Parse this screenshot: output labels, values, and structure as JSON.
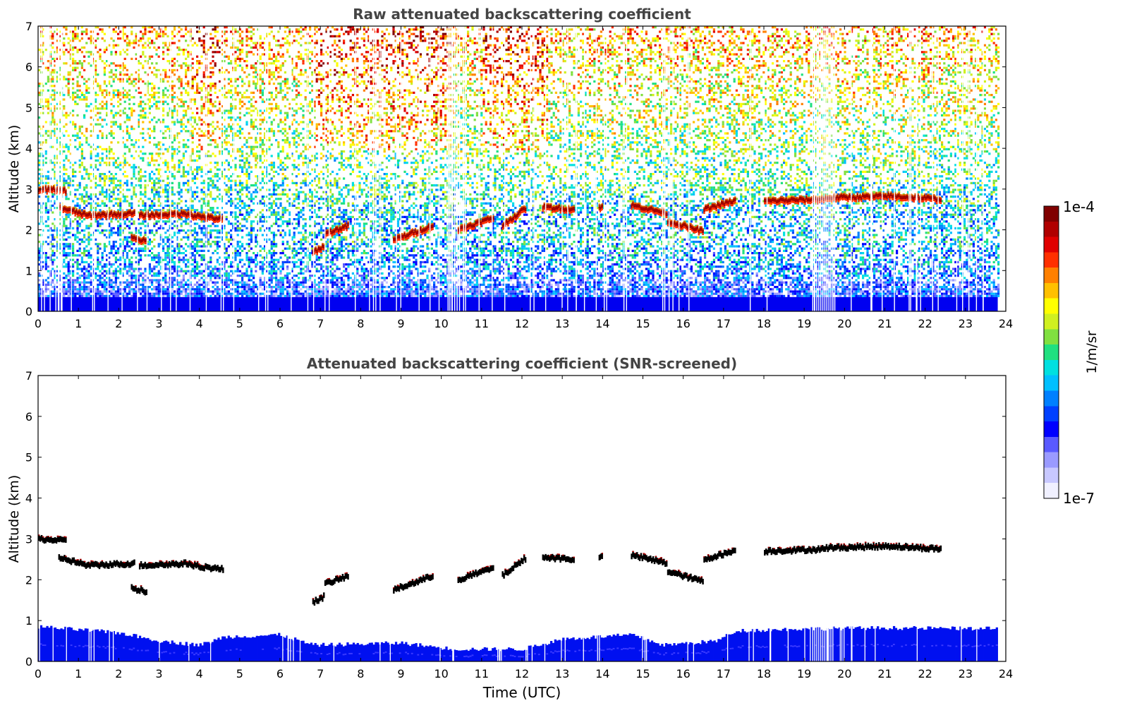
{
  "colorbar": {
    "max_label": "1e-4",
    "min_label": "1e-7",
    "unit_label": "1/m/sr",
    "colors": [
      "#f0f0ff",
      "#c8c8ff",
      "#9a9aff",
      "#5a5aff",
      "#0000ff",
      "#0040ff",
      "#0080ff",
      "#00c0ff",
      "#00e0e0",
      "#20e080",
      "#80e040",
      "#d0f020",
      "#ffff00",
      "#ffc000",
      "#ff8000",
      "#ff3000",
      "#e00000",
      "#b00000",
      "#800000"
    ]
  },
  "chart_data": [
    {
      "type": "heatmap",
      "title": "Raw attenuated backscattering coefficient",
      "xlabel": "",
      "ylabel": "Altitude (km)",
      "xlim": [
        0,
        24
      ],
      "ylim": [
        0,
        7
      ],
      "xticks": [
        "0",
        "1",
        "2",
        "3",
        "4",
        "5",
        "6",
        "7",
        "8",
        "9",
        "10",
        "11",
        "12",
        "13",
        "14",
        "15",
        "16",
        "17",
        "18",
        "19",
        "20",
        "21",
        "22",
        "23",
        "24"
      ],
      "yticks": [
        "0",
        "1",
        "2",
        "3",
        "4",
        "5",
        "6",
        "7"
      ],
      "colorscale": "log",
      "clim": [
        1e-07,
        0.0001
      ],
      "data_end_time": 23.8,
      "boundary_layer_top_km": 0.8,
      "cloud_layer_segments": [
        {
          "t0": 0.0,
          "t1": 0.7,
          "z0": 3.0,
          "z1": 2.95
        },
        {
          "t0": 0.5,
          "t1": 1.2,
          "z0": 2.55,
          "z1": 2.35
        },
        {
          "t0": 1.2,
          "t1": 2.4,
          "z0": 2.35,
          "z1": 2.4
        },
        {
          "t0": 2.5,
          "t1": 3.8,
          "z0": 2.35,
          "z1": 2.4
        },
        {
          "t0": 3.8,
          "t1": 4.6,
          "z0": 2.35,
          "z1": 2.25
        },
        {
          "t0": 2.3,
          "t1": 2.7,
          "z0": 1.8,
          "z1": 1.7
        },
        {
          "t0": 6.8,
          "t1": 7.1,
          "z0": 1.45,
          "z1": 1.6
        },
        {
          "t0": 7.1,
          "t1": 7.7,
          "z0": 1.9,
          "z1": 2.1
        },
        {
          "t0": 8.8,
          "t1": 9.8,
          "z0": 1.75,
          "z1": 2.1
        },
        {
          "t0": 10.4,
          "t1": 11.3,
          "z0": 2.0,
          "z1": 2.3
        },
        {
          "t0": 11.5,
          "t1": 12.1,
          "z0": 2.1,
          "z1": 2.55
        },
        {
          "t0": 12.5,
          "t1": 13.3,
          "z0": 2.55,
          "z1": 2.5
        },
        {
          "t0": 13.9,
          "t1": 14.0,
          "z0": 2.55,
          "z1": 2.55
        },
        {
          "t0": 14.7,
          "t1": 15.6,
          "z0": 2.6,
          "z1": 2.4
        },
        {
          "t0": 15.6,
          "t1": 16.5,
          "z0": 2.2,
          "z1": 1.95
        },
        {
          "t0": 16.5,
          "t1": 17.3,
          "z0": 2.5,
          "z1": 2.72
        },
        {
          "t0": 18.0,
          "t1": 19.5,
          "z0": 2.7,
          "z1": 2.75
        },
        {
          "t0": 19.5,
          "t1": 21.0,
          "z0": 2.78,
          "z1": 2.82
        },
        {
          "t0": 21.0,
          "t1": 22.4,
          "z0": 2.83,
          "z1": 2.75
        }
      ]
    },
    {
      "type": "heatmap",
      "title": "Attenuated backscattering coefficient (SNR-screened)",
      "xlabel": "Time (UTC)",
      "ylabel": "Altitude (km)",
      "xlim": [
        0,
        24
      ],
      "ylim": [
        0,
        7
      ],
      "xticks": [
        "0",
        "1",
        "2",
        "3",
        "4",
        "5",
        "6",
        "7",
        "8",
        "9",
        "10",
        "11",
        "12",
        "13",
        "14",
        "15",
        "16",
        "17",
        "18",
        "19",
        "20",
        "21",
        "22",
        "23",
        "24"
      ],
      "yticks": [
        "0",
        "1",
        "2",
        "3",
        "4",
        "5",
        "6",
        "7"
      ],
      "colorscale": "log",
      "clim": [
        1e-07,
        0.0001
      ],
      "boundary_layer_height_km": [
        {
          "t": 0,
          "z": 0.85
        },
        {
          "t": 2,
          "z": 0.7
        },
        {
          "t": 3,
          "z": 0.5
        },
        {
          "t": 4,
          "z": 0.4
        },
        {
          "t": 4.6,
          "z": 0.6
        },
        {
          "t": 6,
          "z": 0.65
        },
        {
          "t": 6.8,
          "z": 0.4
        },
        {
          "t": 9,
          "z": 0.45
        },
        {
          "t": 10.3,
          "z": 0.3
        },
        {
          "t": 12,
          "z": 0.3
        },
        {
          "t": 13,
          "z": 0.55
        },
        {
          "t": 14.7,
          "z": 0.65
        },
        {
          "t": 15.5,
          "z": 0.4
        },
        {
          "t": 16.8,
          "z": 0.5
        },
        {
          "t": 17.3,
          "z": 0.75
        },
        {
          "t": 19,
          "z": 0.8
        },
        {
          "t": 21,
          "z": 0.82
        },
        {
          "t": 23.8,
          "z": 0.8
        }
      ]
    }
  ]
}
